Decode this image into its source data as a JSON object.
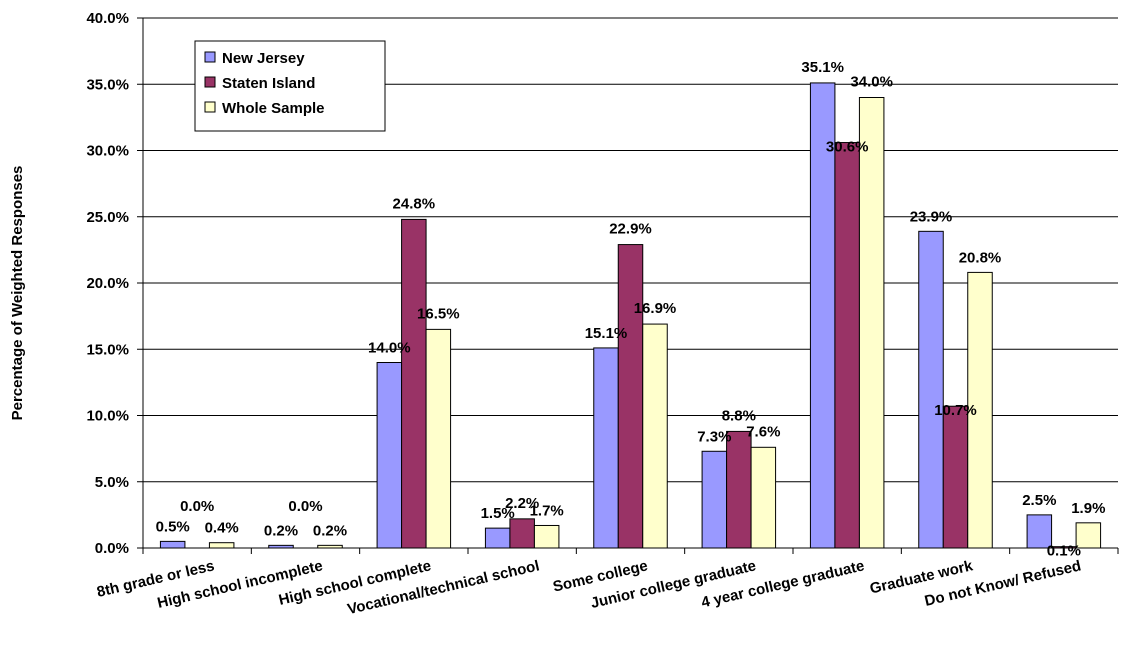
{
  "chart_data": {
    "type": "bar",
    "title": "",
    "xlabel": "",
    "ylabel": "Percentage of Weighted Responses",
    "ylim": [
      0,
      40
    ],
    "ytick_step": 5,
    "y_format": "percent_1dp",
    "grid": "horizontal",
    "legend_position": "top-left",
    "categories": [
      "8th grade or less",
      "High school incomplete",
      "High school complete",
      "Vocational/technical school",
      "Some college",
      "Junior college graduate",
      "4 year college graduate",
      "Graduate work",
      "Do not Know/ Refused"
    ],
    "series": [
      {
        "name": "New Jersey",
        "color": "#9999FF",
        "values": [
          0.5,
          0.2,
          14.0,
          1.5,
          15.1,
          7.3,
          35.1,
          23.9,
          2.5
        ],
        "labels": [
          "0.5%",
          "0.2%",
          "14.0%",
          "1.5%",
          "15.1%",
          "7.3%",
          "35.1%",
          "23.9%",
          "2.5%"
        ]
      },
      {
        "name": "Staten Island",
        "color": "#993366",
        "values": [
          0.0,
          0.0,
          24.8,
          2.2,
          22.9,
          8.8,
          30.6,
          10.7,
          0.1
        ],
        "labels": [
          "0.0%",
          "0.0%",
          "24.8%",
          "2.2%",
          "22.9%",
          "8.8%",
          "30.6%",
          "10.7%",
          "0.1%"
        ]
      },
      {
        "name": "Whole Sample",
        "color": "#FFFFCC",
        "values": [
          0.4,
          0.2,
          16.5,
          1.7,
          16.9,
          7.6,
          34.0,
          20.8,
          1.9
        ],
        "labels": [
          "0.4%",
          "0.2%",
          "16.5%",
          "1.7%",
          "16.9%",
          "7.6%",
          "34.0%",
          "20.8%",
          "1.9%"
        ]
      }
    ]
  }
}
